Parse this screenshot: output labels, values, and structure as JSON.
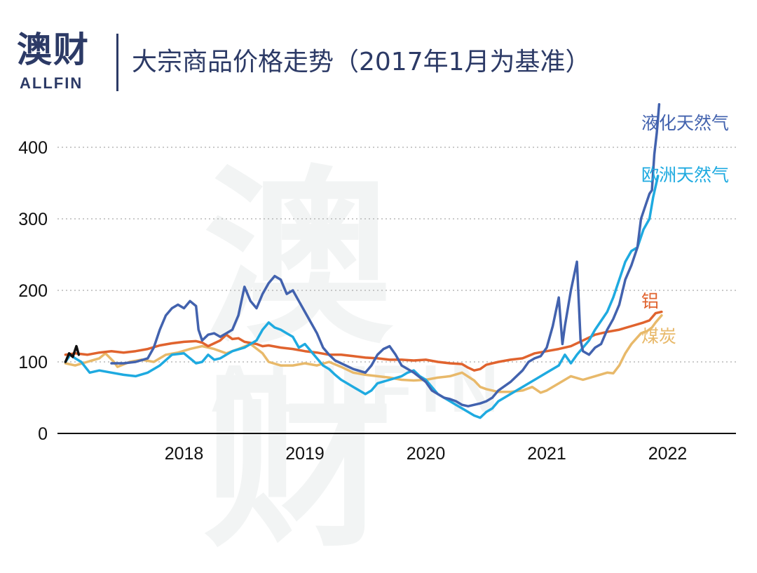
{
  "header": {
    "logo_cn": "澳财",
    "logo_en": "ALLFIN",
    "title": "大宗商品价格走势（2017年1月为基准）"
  },
  "watermark": {
    "cn": "澳财",
    "en": "ALLFIN"
  },
  "chart_data": {
    "type": "line",
    "title": "大宗商品价格走势（2017年1月为基准）",
    "xlabel": "",
    "ylabel": "",
    "xlim": [
      2017.0,
      2022.6
    ],
    "ylim": [
      0,
      460
    ],
    "yticks": [
      0,
      100,
      200,
      300,
      400
    ],
    "y_tick_labels": [
      "0",
      "100",
      "200",
      "300",
      "400"
    ],
    "xticks": [
      2018,
      2019,
      2020,
      2021,
      2022
    ],
    "x_tick_labels": [
      "2018",
      "2019",
      "2020",
      "2021",
      "2022"
    ],
    "grid": "horizontal dotted",
    "legend": "series labels at right end of lines",
    "series": [
      {
        "name": "煤炭",
        "color": "#e8b96a",
        "points": [
          [
            2017.02,
            98
          ],
          [
            2017.1,
            95
          ],
          [
            2017.2,
            100
          ],
          [
            2017.3,
            105
          ],
          [
            2017.35,
            112
          ],
          [
            2017.42,
            100
          ],
          [
            2017.45,
            93
          ],
          [
            2017.55,
            100
          ],
          [
            2017.65,
            103
          ],
          [
            2017.75,
            100
          ],
          [
            2017.85,
            110
          ],
          [
            2017.95,
            113
          ],
          [
            2018.05,
            118
          ],
          [
            2018.15,
            122
          ],
          [
            2018.25,
            118
          ],
          [
            2018.35,
            112
          ],
          [
            2018.45,
            118
          ],
          [
            2018.55,
            125
          ],
          [
            2018.65,
            112
          ],
          [
            2018.7,
            100
          ],
          [
            2018.8,
            95
          ],
          [
            2018.9,
            95
          ],
          [
            2019.0,
            98
          ],
          [
            2019.1,
            95
          ],
          [
            2019.2,
            100
          ],
          [
            2019.3,
            93
          ],
          [
            2019.4,
            85
          ],
          [
            2019.5,
            82
          ],
          [
            2019.6,
            80
          ],
          [
            2019.7,
            78
          ],
          [
            2019.8,
            75
          ],
          [
            2019.9,
            74
          ],
          [
            2020.0,
            75
          ],
          [
            2020.1,
            78
          ],
          [
            2020.2,
            80
          ],
          [
            2020.3,
            85
          ],
          [
            2020.4,
            74
          ],
          [
            2020.45,
            65
          ],
          [
            2020.5,
            62
          ],
          [
            2020.55,
            60
          ],
          [
            2020.6,
            58
          ],
          [
            2020.7,
            58
          ],
          [
            2020.8,
            60
          ],
          [
            2020.88,
            65
          ],
          [
            2020.95,
            57
          ],
          [
            2021.0,
            60
          ],
          [
            2021.1,
            70
          ],
          [
            2021.2,
            80
          ],
          [
            2021.3,
            75
          ],
          [
            2021.4,
            80
          ],
          [
            2021.5,
            85
          ],
          [
            2021.55,
            84
          ],
          [
            2021.6,
            95
          ],
          [
            2021.65,
            112
          ],
          [
            2021.7,
            125
          ],
          [
            2021.78,
            140
          ],
          [
            2021.83,
            143
          ],
          [
            2021.87,
            148
          ],
          [
            2021.9,
            155
          ],
          [
            2021.95,
            165
          ]
        ]
      },
      {
        "name": "铝",
        "color": "#e0632e",
        "points": [
          [
            2017.02,
            110
          ],
          [
            2017.1,
            112
          ],
          [
            2017.2,
            110
          ],
          [
            2017.3,
            113
          ],
          [
            2017.4,
            115
          ],
          [
            2017.5,
            113
          ],
          [
            2017.6,
            115
          ],
          [
            2017.7,
            118
          ],
          [
            2017.8,
            123
          ],
          [
            2017.9,
            126
          ],
          [
            2018.0,
            128
          ],
          [
            2018.1,
            129
          ],
          [
            2018.15,
            127
          ],
          [
            2018.2,
            122
          ],
          [
            2018.25,
            126
          ],
          [
            2018.3,
            130
          ],
          [
            2018.35,
            138
          ],
          [
            2018.4,
            132
          ],
          [
            2018.45,
            133
          ],
          [
            2018.5,
            128
          ],
          [
            2018.6,
            125
          ],
          [
            2018.65,
            122
          ],
          [
            2018.7,
            123
          ],
          [
            2018.8,
            120
          ],
          [
            2018.9,
            118
          ],
          [
            2019.0,
            115
          ],
          [
            2019.1,
            113
          ],
          [
            2019.2,
            110
          ],
          [
            2019.3,
            110
          ],
          [
            2019.4,
            108
          ],
          [
            2019.5,
            106
          ],
          [
            2019.6,
            105
          ],
          [
            2019.7,
            103
          ],
          [
            2019.8,
            103
          ],
          [
            2019.9,
            102
          ],
          [
            2020.0,
            103
          ],
          [
            2020.1,
            100
          ],
          [
            2020.2,
            98
          ],
          [
            2020.3,
            97
          ],
          [
            2020.35,
            92
          ],
          [
            2020.4,
            88
          ],
          [
            2020.45,
            90
          ],
          [
            2020.5,
            96
          ],
          [
            2020.6,
            100
          ],
          [
            2020.7,
            103
          ],
          [
            2020.8,
            105
          ],
          [
            2020.9,
            112
          ],
          [
            2021.0,
            115
          ],
          [
            2021.1,
            118
          ],
          [
            2021.2,
            122
          ],
          [
            2021.3,
            130
          ],
          [
            2021.4,
            138
          ],
          [
            2021.5,
            142
          ],
          [
            2021.6,
            145
          ],
          [
            2021.7,
            150
          ],
          [
            2021.8,
            155
          ],
          [
            2021.85,
            158
          ],
          [
            2021.9,
            168
          ],
          [
            2021.95,
            170
          ]
        ]
      },
      {
        "name": "欧洲天然气",
        "color": "#1eaae0",
        "points": [
          [
            2017.02,
            100
          ],
          [
            2017.06,
            110
          ],
          [
            2017.1,
            105
          ],
          [
            2017.15,
            100
          ],
          [
            2017.22,
            85
          ],
          [
            2017.3,
            88
          ],
          [
            2017.4,
            85
          ],
          [
            2017.5,
            82
          ],
          [
            2017.6,
            80
          ],
          [
            2017.7,
            85
          ],
          [
            2017.8,
            95
          ],
          [
            2017.9,
            110
          ],
          [
            2018.0,
            112
          ],
          [
            2018.05,
            105
          ],
          [
            2018.1,
            98
          ],
          [
            2018.15,
            100
          ],
          [
            2018.2,
            110
          ],
          [
            2018.25,
            103
          ],
          [
            2018.3,
            105
          ],
          [
            2018.35,
            110
          ],
          [
            2018.4,
            115
          ],
          [
            2018.5,
            120
          ],
          [
            2018.6,
            130
          ],
          [
            2018.65,
            145
          ],
          [
            2018.7,
            155
          ],
          [
            2018.75,
            148
          ],
          [
            2018.8,
            145
          ],
          [
            2018.85,
            140
          ],
          [
            2018.9,
            135
          ],
          [
            2018.95,
            120
          ],
          [
            2019.0,
            125
          ],
          [
            2019.05,
            115
          ],
          [
            2019.1,
            105
          ],
          [
            2019.15,
            95
          ],
          [
            2019.2,
            90
          ],
          [
            2019.25,
            82
          ],
          [
            2019.3,
            75
          ],
          [
            2019.35,
            70
          ],
          [
            2019.4,
            65
          ],
          [
            2019.45,
            60
          ],
          [
            2019.5,
            55
          ],
          [
            2019.55,
            60
          ],
          [
            2019.6,
            70
          ],
          [
            2019.7,
            75
          ],
          [
            2019.8,
            80
          ],
          [
            2019.85,
            85
          ],
          [
            2019.9,
            88
          ],
          [
            2019.95,
            80
          ],
          [
            2020.0,
            75
          ],
          [
            2020.05,
            65
          ],
          [
            2020.1,
            55
          ],
          [
            2020.15,
            50
          ],
          [
            2020.2,
            45
          ],
          [
            2020.25,
            40
          ],
          [
            2020.3,
            35
          ],
          [
            2020.35,
            30
          ],
          [
            2020.4,
            25
          ],
          [
            2020.45,
            22
          ],
          [
            2020.5,
            30
          ],
          [
            2020.55,
            35
          ],
          [
            2020.6,
            45
          ],
          [
            2020.7,
            55
          ],
          [
            2020.8,
            65
          ],
          [
            2020.9,
            75
          ],
          [
            2021.0,
            85
          ],
          [
            2021.1,
            95
          ],
          [
            2021.15,
            110
          ],
          [
            2021.2,
            98
          ],
          [
            2021.25,
            110
          ],
          [
            2021.3,
            120
          ],
          [
            2021.35,
            130
          ],
          [
            2021.4,
            145
          ],
          [
            2021.5,
            170
          ],
          [
            2021.55,
            190
          ],
          [
            2021.6,
            215
          ],
          [
            2021.65,
            240
          ],
          [
            2021.7,
            255
          ],
          [
            2021.75,
            260
          ],
          [
            2021.8,
            285
          ],
          [
            2021.85,
            300
          ],
          [
            2021.88,
            330
          ],
          [
            2021.92,
            360
          ]
        ]
      },
      {
        "name": "液化天然气",
        "color": "#4262ae",
        "points": [
          [
            2017.4,
            98
          ],
          [
            2017.5,
            98
          ],
          [
            2017.6,
            100
          ],
          [
            2017.7,
            105
          ],
          [
            2017.75,
            120
          ],
          [
            2017.8,
            145
          ],
          [
            2017.85,
            165
          ],
          [
            2017.9,
            175
          ],
          [
            2017.95,
            180
          ],
          [
            2018.0,
            175
          ],
          [
            2018.05,
            185
          ],
          [
            2018.1,
            178
          ],
          [
            2018.12,
            145
          ],
          [
            2018.15,
            130
          ],
          [
            2018.2,
            138
          ],
          [
            2018.25,
            140
          ],
          [
            2018.3,
            135
          ],
          [
            2018.35,
            140
          ],
          [
            2018.4,
            145
          ],
          [
            2018.45,
            165
          ],
          [
            2018.5,
            205
          ],
          [
            2018.55,
            185
          ],
          [
            2018.6,
            175
          ],
          [
            2018.65,
            195
          ],
          [
            2018.7,
            210
          ],
          [
            2018.75,
            220
          ],
          [
            2018.8,
            215
          ],
          [
            2018.85,
            195
          ],
          [
            2018.9,
            200
          ],
          [
            2018.95,
            185
          ],
          [
            2019.0,
            170
          ],
          [
            2019.05,
            155
          ],
          [
            2019.1,
            140
          ],
          [
            2019.15,
            120
          ],
          [
            2019.2,
            110
          ],
          [
            2019.25,
            102
          ],
          [
            2019.3,
            98
          ],
          [
            2019.4,
            90
          ],
          [
            2019.5,
            85
          ],
          [
            2019.55,
            95
          ],
          [
            2019.6,
            110
          ],
          [
            2019.65,
            118
          ],
          [
            2019.7,
            122
          ],
          [
            2019.75,
            110
          ],
          [
            2019.8,
            95
          ],
          [
            2019.9,
            85
          ],
          [
            2020.0,
            72
          ],
          [
            2020.05,
            60
          ],
          [
            2020.1,
            55
          ],
          [
            2020.15,
            50
          ],
          [
            2020.2,
            48
          ],
          [
            2020.25,
            45
          ],
          [
            2020.3,
            40
          ],
          [
            2020.35,
            38
          ],
          [
            2020.4,
            40
          ],
          [
            2020.45,
            42
          ],
          [
            2020.5,
            45
          ],
          [
            2020.55,
            50
          ],
          [
            2020.6,
            60
          ],
          [
            2020.7,
            72
          ],
          [
            2020.8,
            88
          ],
          [
            2020.85,
            100
          ],
          [
            2020.9,
            105
          ],
          [
            2020.95,
            108
          ],
          [
            2021.0,
            120
          ],
          [
            2021.05,
            150
          ],
          [
            2021.1,
            190
          ],
          [
            2021.13,
            125
          ],
          [
            2021.15,
            150
          ],
          [
            2021.2,
            200
          ],
          [
            2021.25,
            240
          ],
          [
            2021.28,
            130
          ],
          [
            2021.3,
            115
          ],
          [
            2021.35,
            110
          ],
          [
            2021.4,
            120
          ],
          [
            2021.45,
            125
          ],
          [
            2021.5,
            145
          ],
          [
            2021.55,
            160
          ],
          [
            2021.6,
            180
          ],
          [
            2021.65,
            215
          ],
          [
            2021.7,
            235
          ],
          [
            2021.75,
            260
          ],
          [
            2021.78,
            300
          ],
          [
            2021.82,
            320
          ],
          [
            2021.85,
            335
          ],
          [
            2021.87,
            340
          ],
          [
            2021.89,
            390
          ],
          [
            2021.91,
            420
          ],
          [
            2021.93,
            460
          ]
        ]
      },
      {
        "name": "start-marker",
        "color": "#111111",
        "points": [
          [
            2017.02,
            100
          ],
          [
            2017.05,
            112
          ],
          [
            2017.08,
            107
          ],
          [
            2017.11,
            122
          ],
          [
            2017.13,
            110
          ]
        ]
      }
    ],
    "labels": [
      {
        "text": "液化天然气",
        "color": "#4262ae"
      },
      {
        "text": "欧洲天然气",
        "color": "#1eaae0"
      },
      {
        "text": "铝",
        "color": "#e0632e"
      },
      {
        "text": "煤炭",
        "color": "#e8b96a"
      }
    ]
  }
}
